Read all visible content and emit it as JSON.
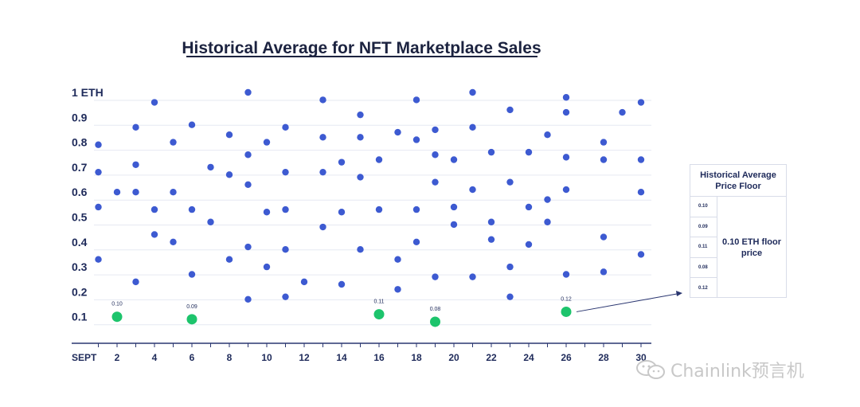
{
  "chart_data": {
    "type": "scatter",
    "title": "Historical Average for NFT Marketplace Sales",
    "ylim": [
      0,
      1
    ],
    "y_ticks": [
      {
        "value": 1.0,
        "label": "1 ETH"
      },
      {
        "value": 0.9,
        "label": "0.9"
      },
      {
        "value": 0.8,
        "label": "0.8"
      },
      {
        "value": 0.7,
        "label": "0.7"
      },
      {
        "value": 0.6,
        "label": "0.6"
      },
      {
        "value": 0.5,
        "label": "0.5"
      },
      {
        "value": 0.4,
        "label": "0.4"
      },
      {
        "value": 0.3,
        "label": "0.3"
      },
      {
        "value": 0.2,
        "label": "0.2"
      },
      {
        "value": 0.1,
        "label": "0.1"
      }
    ],
    "x_unit_label": "SEPT",
    "xlim": [
      0.9,
      30
    ],
    "x_ticks": [
      {
        "value": 2,
        "label": "2"
      },
      {
        "value": 4,
        "label": "4"
      },
      {
        "value": 6,
        "label": "6"
      },
      {
        "value": 8,
        "label": "8"
      },
      {
        "value": 10,
        "label": "10"
      },
      {
        "value": 12,
        "label": "12"
      },
      {
        "value": 14,
        "label": "14"
      },
      {
        "value": 16,
        "label": "16"
      },
      {
        "value": 18,
        "label": "18"
      },
      {
        "value": 20,
        "label": "20"
      },
      {
        "value": 22,
        "label": "22"
      },
      {
        "value": 24,
        "label": "24"
      },
      {
        "value": 26,
        "label": "26"
      },
      {
        "value": 28,
        "label": "28"
      },
      {
        "value": 30,
        "label": "30"
      }
    ],
    "grid": true,
    "sales_points": [
      [
        1,
        0.79
      ],
      [
        1,
        0.68
      ],
      [
        1,
        0.54
      ],
      [
        1,
        0.33
      ],
      [
        2,
        0.6
      ],
      [
        3,
        0.86
      ],
      [
        3,
        0.71
      ],
      [
        3,
        0.6
      ],
      [
        3,
        0.24
      ],
      [
        4,
        0.96
      ],
      [
        4,
        0.53
      ],
      [
        4,
        0.43
      ],
      [
        5,
        0.8
      ],
      [
        5,
        0.6
      ],
      [
        5,
        0.4
      ],
      [
        6,
        0.87
      ],
      [
        6,
        0.53
      ],
      [
        6,
        0.27
      ],
      [
        7,
        0.7
      ],
      [
        7,
        0.48
      ],
      [
        8,
        0.83
      ],
      [
        8,
        0.67
      ],
      [
        8,
        0.33
      ],
      [
        9,
        1.0
      ],
      [
        9,
        0.75
      ],
      [
        9,
        0.63
      ],
      [
        9,
        0.38
      ],
      [
        9,
        0.17
      ],
      [
        10,
        0.8
      ],
      [
        10,
        0.52
      ],
      [
        10,
        0.3
      ],
      [
        11,
        0.86
      ],
      [
        11,
        0.68
      ],
      [
        11,
        0.53
      ],
      [
        11,
        0.37
      ],
      [
        11,
        0.18
      ],
      [
        12,
        0.24
      ],
      [
        13,
        0.97
      ],
      [
        13,
        0.82
      ],
      [
        13,
        0.68
      ],
      [
        13,
        0.46
      ],
      [
        14,
        0.72
      ],
      [
        14,
        0.52
      ],
      [
        14,
        0.23
      ],
      [
        15,
        0.91
      ],
      [
        15,
        0.82
      ],
      [
        15,
        0.66
      ],
      [
        15,
        0.37
      ],
      [
        16,
        0.73
      ],
      [
        16,
        0.53
      ],
      [
        17,
        0.84
      ],
      [
        17,
        0.33
      ],
      [
        17,
        0.21
      ],
      [
        18,
        0.97
      ],
      [
        18,
        0.81
      ],
      [
        18,
        0.53
      ],
      [
        18,
        0.4
      ],
      [
        19,
        0.85
      ],
      [
        19,
        0.75
      ],
      [
        19,
        0.64
      ],
      [
        19,
        0.26
      ],
      [
        20,
        0.73
      ],
      [
        20,
        0.54
      ],
      [
        20,
        0.47
      ],
      [
        21,
        1.0
      ],
      [
        21,
        0.86
      ],
      [
        21,
        0.61
      ],
      [
        21,
        0.26
      ],
      [
        22,
        0.76
      ],
      [
        22,
        0.48
      ],
      [
        22,
        0.41
      ],
      [
        23,
        0.93
      ],
      [
        23,
        0.64
      ],
      [
        23,
        0.3
      ],
      [
        23,
        0.18
      ],
      [
        24,
        0.76
      ],
      [
        24,
        0.54
      ],
      [
        24,
        0.39
      ],
      [
        25,
        0.83
      ],
      [
        25,
        0.57
      ],
      [
        25,
        0.48
      ],
      [
        26,
        0.98
      ],
      [
        26,
        0.92
      ],
      [
        26,
        0.74
      ],
      [
        26,
        0.61
      ],
      [
        26,
        0.27
      ],
      [
        28,
        0.8
      ],
      [
        28,
        0.73
      ],
      [
        28,
        0.42
      ],
      [
        28,
        0.28
      ],
      [
        29,
        0.92
      ],
      [
        30,
        0.96
      ],
      [
        30,
        0.73
      ],
      [
        30,
        0.6
      ],
      [
        30,
        0.35
      ]
    ],
    "floor_points": [
      {
        "x": 2,
        "y": 0.1,
        "label": "0.10"
      },
      {
        "x": 6,
        "y": 0.09,
        "label": "0.09"
      },
      {
        "x": 16,
        "y": 0.11,
        "label": "0.11"
      },
      {
        "x": 19,
        "y": 0.08,
        "label": "0.08"
      },
      {
        "x": 26,
        "y": 0.12,
        "label": "0.12"
      }
    ],
    "colors": {
      "sales": "#3d5ad1",
      "floor": "#1dc46c",
      "axis": "#2a3670",
      "grid": "#e6e9f2",
      "text": "#1e2a5a"
    }
  },
  "panel": {
    "header": "Historical Average Price Floor",
    "values": [
      "0.10",
      "0.09",
      "0.11",
      "0.08",
      "0.12"
    ],
    "summary": "0.10 ETH floor price"
  },
  "watermark": {
    "text": "Chainlink预言机",
    "icon": "wechat-icon"
  }
}
